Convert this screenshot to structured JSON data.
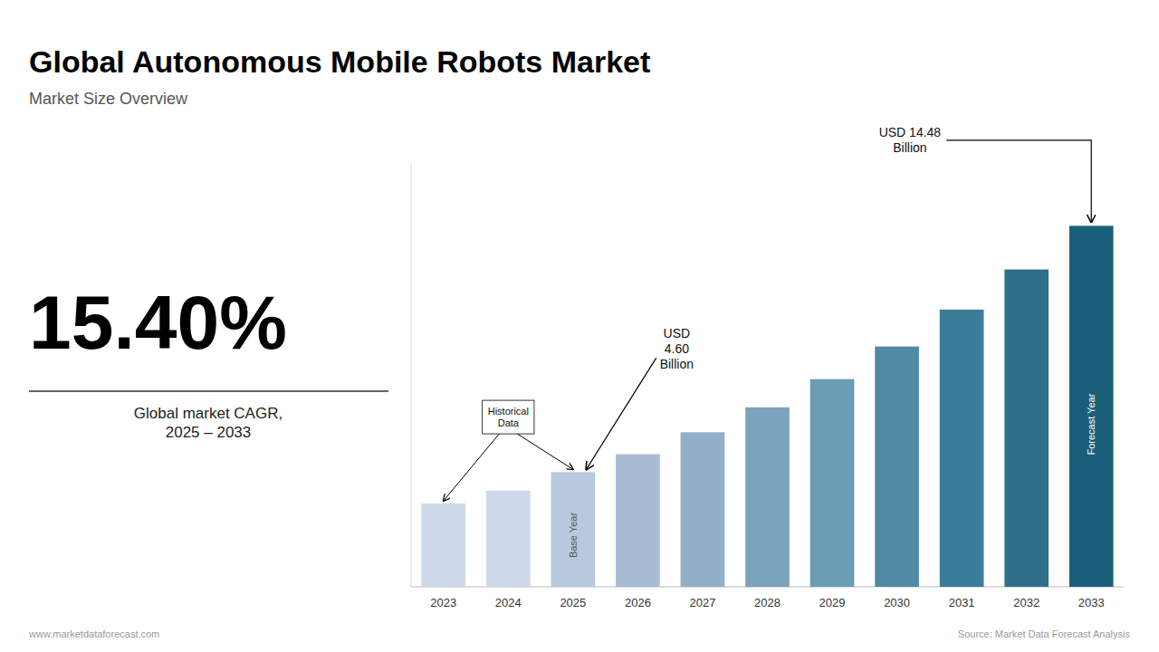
{
  "chart_data": {
    "type": "bar",
    "title": "Global Autonomous Mobile Robots Market",
    "subtitle": "Market Size Overview",
    "categories": [
      "2023",
      "2024",
      "2025",
      "2026",
      "2027",
      "2028",
      "2029",
      "2030",
      "2031",
      "2032",
      "2033"
    ],
    "values": [
      3.34,
      3.86,
      4.6,
      5.32,
      6.2,
      7.2,
      8.33,
      9.64,
      11.12,
      12.73,
      14.48
    ],
    "colors": [
      "#cdd8e8",
      "#cdd8e8",
      "#b8c9df",
      "#a8bdd4",
      "#91afc8",
      "#7aa3bc",
      "#6a9db5",
      "#4f8aa4",
      "#3a7d98",
      "#2e6f8a",
      "#1a5f7a"
    ],
    "ylim": [
      0,
      17.0
    ],
    "yticks": [],
    "tick_labels": "x",
    "grid": false,
    "cagr": "15.40%",
    "cagr_label": "Global market CAGR,\n2025 – 2033",
    "callouts": [
      {
        "text": "USD\n4.60\nBillion",
        "category": "2025"
      },
      {
        "text": "Historical\nData",
        "categories": [
          "2023",
          "2025"
        ],
        "boxed": true
      },
      {
        "text": "USD 14.48\nBillion",
        "category": "2033"
      }
    ],
    "inside_labels": [
      {
        "text": "Base Year",
        "category": "2025",
        "color": "#555555"
      },
      {
        "text": "Forecast Year",
        "category": "2033",
        "color": "#ffffff"
      }
    ],
    "footer_left": "www.marketdataforecast.com",
    "footer_right": "Source: Market Data Forecast Analysis"
  }
}
